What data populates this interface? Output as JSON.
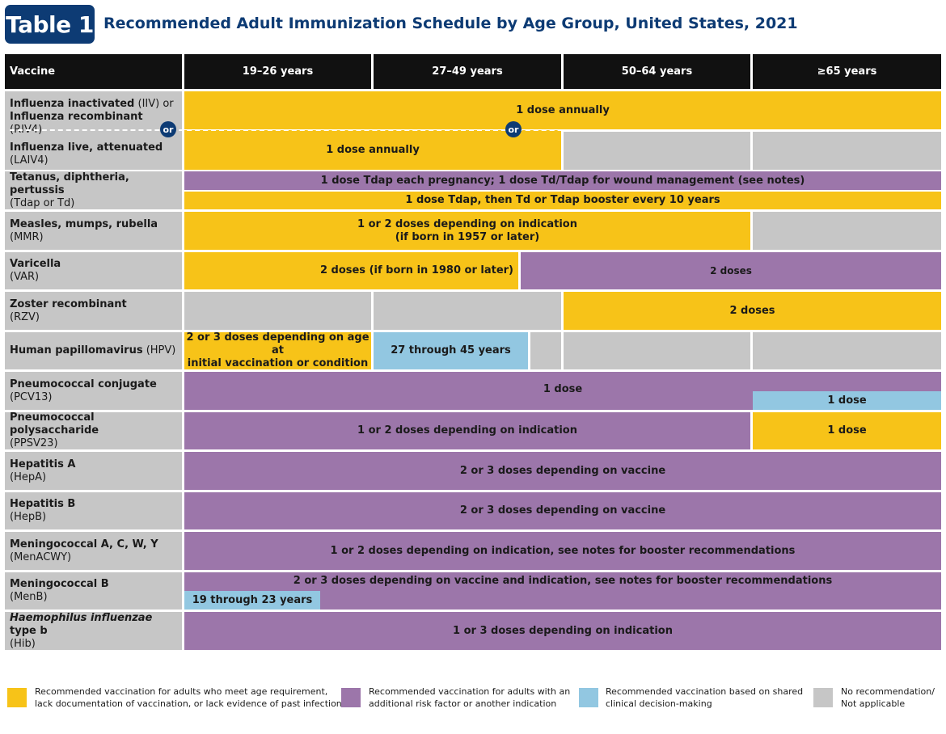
{
  "badge": "Table 1",
  "title": "Recommended Adult Immunization Schedule by Age Group, United States, 2021",
  "headers": [
    "Vaccine",
    "19–26 years",
    "27–49 years",
    "50–64 years",
    "≥65 years"
  ],
  "colors": {
    "yellow": "#f7c318",
    "purple": "#9c76aa",
    "blue": "#92c7e1",
    "gray": "#c6c6c6",
    "navy": "#0d3b74"
  },
  "vaccines": {
    "iiv_b1": "Influenza inactivated",
    "iiv_n1": " (IIV) or",
    "iiv_b2": "Influenza recombinant",
    "iiv_n2": " (RIV4)",
    "or": "or",
    "laiv_b": "Influenza live, attenuated",
    "laiv_n": "(LAIV4)",
    "tdap_b": "Tetanus, diphtheria, pertussis",
    "tdap_n": "(Tdap or Td)",
    "mmr_b": "Measles, mumps, rubella",
    "mmr_n": "(MMR)",
    "var_b": "Varicella",
    "var_n": "(VAR)",
    "rzv_b": "Zoster recombinant",
    "rzv_n": "(RZV)",
    "hpv_b": "Human papillomavirus",
    "hpv_n": " (HPV)",
    "pcv_b": "Pneumococcal conjugate",
    "pcv_n": "(PCV13)",
    "ppsv_b": "Pneumococcal polysaccharide",
    "ppsv_n": "(PPSV23)",
    "hepa_b": "Hepatitis A",
    "hepa_n": "(HepA)",
    "hepb_b": "Hepatitis B",
    "hepb_n": "(HepB)",
    "menacwy_b": "Meningococcal A, C, W, Y",
    "menacwy_n": "(MenACWY)",
    "menb_b": "Meningococcal B",
    "menb_n": "(MenB)",
    "hib_i": "Haemophilus influenzae",
    "hib_b": " type b",
    "hib_n": "(Hib)"
  },
  "cells": {
    "iiv": "1 dose annually",
    "laiv": "1 dose annually",
    "tdap1": "1 dose Tdap each pregnancy; 1 dose Td/Tdap for wound management (see notes)",
    "tdap2": "1 dose Tdap, then Td or Tdap booster every 10 years",
    "mmr1": "1 or 2 doses depending on indication",
    "mmr2": "(if born in 1957 or later)",
    "var_y": "2 doses (if born in 1980 or later)",
    "var_p": "2 doses",
    "rzv": "2 doses",
    "hpv1": "2 or 3 doses depending on age at",
    "hpv2": "initial vaccination or condition",
    "hpv_blue": "27 through 45 years",
    "pcv_p": "1 dose",
    "pcv_b": "1 dose",
    "ppsv_p": "1 or 2 doses depending on indication",
    "ppsv_y": "1 dose",
    "hepa": "2 or 3 doses depending on vaccine",
    "hepb": "2 or 3 doses depending on vaccine",
    "menacwy": "1 or 2 doses depending on indication, see notes for booster recommendations",
    "menb": "2 or 3 doses depending on vaccine and indication, see notes for booster recommendations",
    "menb_blue": "19 through 23 years",
    "hib": "1 or 3 doses depending on indication"
  },
  "legend": [
    {
      "l1": "Recommended vaccination for adults who meet age requirement,",
      "l2": "lack documentation of vaccination, or lack evidence of past infection"
    },
    {
      "l1": "Recommended vaccination for adults with an",
      "l2": "additional risk factor or another indication"
    },
    {
      "l1": "Recommended vaccination based on shared",
      "l2": "clinical decision-making"
    },
    {
      "l1": "No recommendation/",
      "l2": "Not applicable"
    }
  ]
}
